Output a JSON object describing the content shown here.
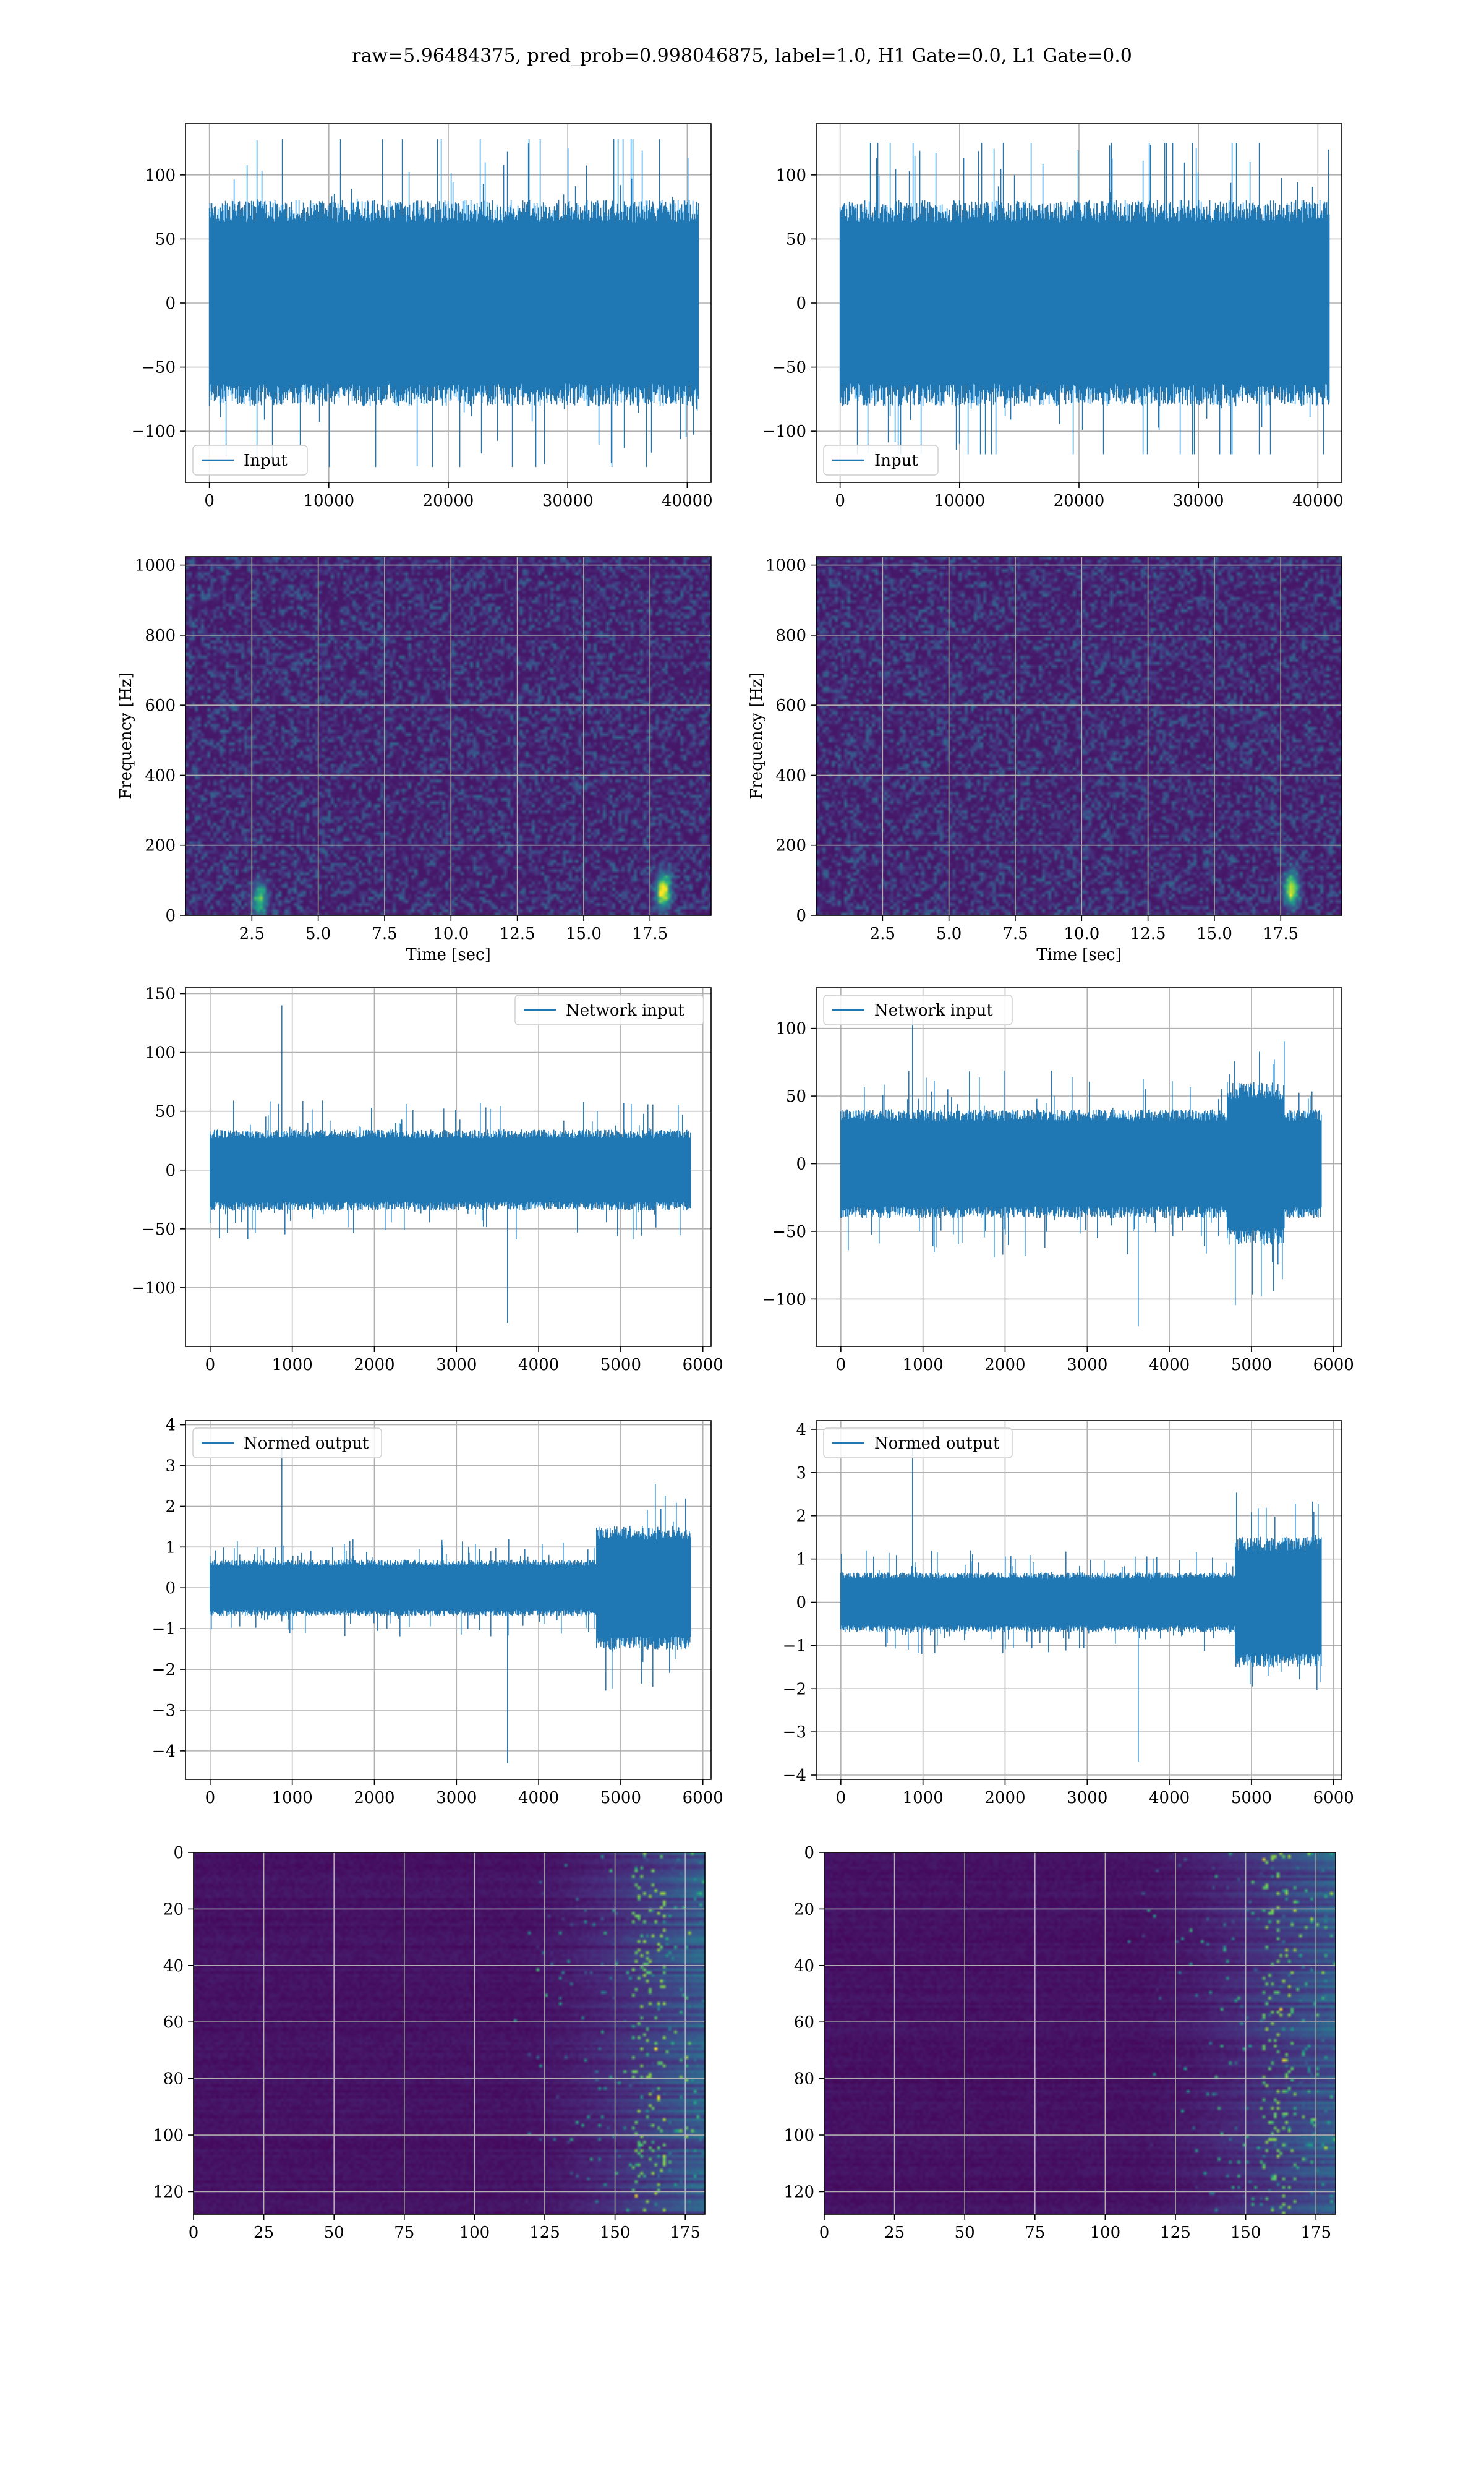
{
  "figure": {
    "suptitle": "raw=5.96484375, pred_prob=0.998046875, label=1.0, H1 Gate=0.0, L1 Gate=0.0"
  },
  "colors": {
    "series": "#1f77b4",
    "grid": "#b0b0b0",
    "spine": "#000000",
    "viridis_low": "#440154",
    "viridis_mid": "#21918c",
    "viridis_high": "#fde725"
  },
  "chart_data": [
    {
      "type": "line",
      "panel": "row1-left",
      "legend": "Input",
      "legend_loc": "lower-left",
      "xlim": [
        -2000,
        42000
      ],
      "ylim": [
        -140,
        140
      ],
      "xticks": [
        0,
        10000,
        20000,
        30000,
        40000
      ],
      "xtick_labels": [
        "0",
        "10000",
        "20000",
        "30000",
        "40000"
      ],
      "yticks": [
        -100,
        -50,
        0,
        50,
        100
      ],
      "ytick_labels": [
        "−100",
        "−50",
        "0",
        "50",
        "100"
      ],
      "grid": true,
      "signal": {
        "x_start": 0,
        "x_end": 40960,
        "core_amplitude": 70,
        "peak_max": 128,
        "peak_min": -128
      }
    },
    {
      "type": "line",
      "panel": "row1-right",
      "legend": "Input",
      "legend_loc": "lower-left",
      "xlim": [
        -2000,
        42000
      ],
      "ylim": [
        -140,
        140
      ],
      "xticks": [
        0,
        10000,
        20000,
        30000,
        40000
      ],
      "xtick_labels": [
        "0",
        "10000",
        "20000",
        "30000",
        "40000"
      ],
      "yticks": [
        -100,
        -50,
        0,
        50,
        100
      ],
      "ytick_labels": [
        "−100",
        "−50",
        "0",
        "50",
        "100"
      ],
      "grid": true,
      "signal": {
        "x_start": 0,
        "x_end": 40960,
        "core_amplitude": 70,
        "peak_max": 125,
        "peak_min": -118
      }
    },
    {
      "type": "heatmap",
      "panel": "row2-left",
      "xlabel": "Time [sec]",
      "ylabel": "Frequency [Hz]",
      "xlim": [
        0,
        19.8
      ],
      "ylim": [
        0,
        1024
      ],
      "xticks": [
        2.5,
        5.0,
        7.5,
        10.0,
        12.5,
        15.0,
        17.5
      ],
      "xtick_labels": [
        "2.5",
        "5.0",
        "7.5",
        "10.0",
        "12.5",
        "15.0",
        "17.5"
      ],
      "yticks": [
        0,
        200,
        400,
        600,
        800,
        1000
      ],
      "ytick_labels": [
        "0",
        "200",
        "400",
        "600",
        "800",
        "1000"
      ],
      "grid": true,
      "colormap": "viridis",
      "hotspots": [
        {
          "t": 18.0,
          "f": 70,
          "intensity": 0.95
        },
        {
          "t": 2.8,
          "f": 45,
          "intensity": 0.6
        }
      ]
    },
    {
      "type": "heatmap",
      "panel": "row2-right",
      "xlabel": "Time [sec]",
      "ylabel": "Frequency [Hz]",
      "xlim": [
        0,
        19.8
      ],
      "ylim": [
        0,
        1024
      ],
      "xticks": [
        2.5,
        5.0,
        7.5,
        10.0,
        12.5,
        15.0,
        17.5
      ],
      "xtick_labels": [
        "2.5",
        "5.0",
        "7.5",
        "10.0",
        "12.5",
        "15.0",
        "17.5"
      ],
      "yticks": [
        0,
        200,
        400,
        600,
        800,
        1000
      ],
      "ytick_labels": [
        "0",
        "200",
        "400",
        "600",
        "800",
        "1000"
      ],
      "grid": true,
      "colormap": "viridis",
      "hotspots": [
        {
          "t": 17.9,
          "f": 75,
          "intensity": 0.85
        }
      ]
    },
    {
      "type": "line",
      "panel": "row3-left",
      "legend": "Network input",
      "legend_loc": "upper-right",
      "xlim": [
        -300,
        6100
      ],
      "ylim": [
        -150,
        155
      ],
      "xticks": [
        0,
        1000,
        2000,
        3000,
        4000,
        5000,
        6000
      ],
      "xtick_labels": [
        "0",
        "1000",
        "2000",
        "3000",
        "4000",
        "5000",
        "6000"
      ],
      "yticks": [
        -100,
        -50,
        0,
        50,
        100,
        150
      ],
      "ytick_labels": [
        "−100",
        "−50",
        "0",
        "50",
        "100",
        "150"
      ],
      "grid": true,
      "signal": {
        "x_start": 0,
        "x_end": 5850,
        "core_amplitude": 30,
        "peak_max": 140,
        "peak_min": -130
      }
    },
    {
      "type": "line",
      "panel": "row3-right",
      "legend": "Network input",
      "legend_loc": "upper-left",
      "xlim": [
        -300,
        6100
      ],
      "ylim": [
        -135,
        130
      ],
      "xticks": [
        0,
        1000,
        2000,
        3000,
        4000,
        5000,
        6000
      ],
      "xtick_labels": [
        "0",
        "1000",
        "2000",
        "3000",
        "4000",
        "5000",
        "6000"
      ],
      "yticks": [
        -100,
        -50,
        0,
        50,
        100
      ],
      "ytick_labels": [
        "−100",
        "−50",
        "0",
        "50",
        "100"
      ],
      "grid": true,
      "signal": {
        "x_start": 0,
        "x_end": 5850,
        "core_amplitude": 35,
        "peak_max": 115,
        "peak_min": -120,
        "burst_center": 5050
      }
    },
    {
      "type": "line",
      "panel": "row4-left",
      "legend": "Normed output",
      "legend_loc": "upper-left",
      "xlim": [
        -300,
        6100
      ],
      "ylim": [
        -4.7,
        4.1
      ],
      "xticks": [
        0,
        1000,
        2000,
        3000,
        4000,
        5000,
        6000
      ],
      "xtick_labels": [
        "0",
        "1000",
        "2000",
        "3000",
        "4000",
        "5000",
        "6000"
      ],
      "yticks": [
        -4,
        -3,
        -2,
        -1,
        0,
        1,
        2,
        3,
        4
      ],
      "ytick_labels": [
        "−4",
        "−3",
        "−2",
        "−1",
        "0",
        "1",
        "2",
        "3",
        "4"
      ],
      "grid": true,
      "signal": {
        "x_start": 0,
        "x_end": 5850,
        "core_amplitude": 0.6,
        "peak_max": 3.7,
        "peak_min": -4.3,
        "burst_start": 4700
      }
    },
    {
      "type": "line",
      "panel": "row4-right",
      "legend": "Normed output",
      "legend_loc": "upper-left",
      "xlim": [
        -300,
        6100
      ],
      "ylim": [
        -4.1,
        4.2
      ],
      "xticks": [
        0,
        1000,
        2000,
        3000,
        4000,
        5000,
        6000
      ],
      "xtick_labels": [
        "0",
        "1000",
        "2000",
        "3000",
        "4000",
        "5000",
        "6000"
      ],
      "yticks": [
        -4,
        -3,
        -2,
        -1,
        0,
        1,
        2,
        3,
        4
      ],
      "ytick_labels": [
        "−4",
        "−3",
        "−2",
        "−1",
        "0",
        "1",
        "2",
        "3",
        "4"
      ],
      "grid": true,
      "signal": {
        "x_start": 0,
        "x_end": 5850,
        "core_amplitude": 0.6,
        "peak_max": 3.8,
        "peak_min": -3.7,
        "burst_start": 4800
      }
    },
    {
      "type": "heatmap",
      "panel": "row5-left",
      "xlim": [
        0,
        182
      ],
      "ylim": [
        128,
        0
      ],
      "xticks": [
        0,
        25,
        50,
        75,
        100,
        125,
        150,
        175
      ],
      "xtick_labels": [
        "0",
        "25",
        "50",
        "75",
        "100",
        "125",
        "150",
        "175"
      ],
      "yticks": [
        0,
        20,
        40,
        60,
        80,
        100,
        120
      ],
      "ytick_labels": [
        "0",
        "20",
        "40",
        "60",
        "80",
        "100",
        "120"
      ],
      "grid": true,
      "colormap": "viridis",
      "rows": 128,
      "cols": 182,
      "activity_start": 110
    },
    {
      "type": "heatmap",
      "panel": "row5-right",
      "xlim": [
        0,
        182
      ],
      "ylim": [
        128,
        0
      ],
      "xticks": [
        0,
        25,
        50,
        75,
        100,
        125,
        150,
        175
      ],
      "xtick_labels": [
        "0",
        "25",
        "50",
        "75",
        "100",
        "125",
        "150",
        "175"
      ],
      "yticks": [
        0,
        20,
        40,
        60,
        80,
        100,
        120
      ],
      "ytick_labels": [
        "0",
        "20",
        "40",
        "60",
        "80",
        "100",
        "120"
      ],
      "grid": true,
      "colormap": "viridis",
      "rows": 128,
      "cols": 182,
      "activity_start": 105
    }
  ]
}
